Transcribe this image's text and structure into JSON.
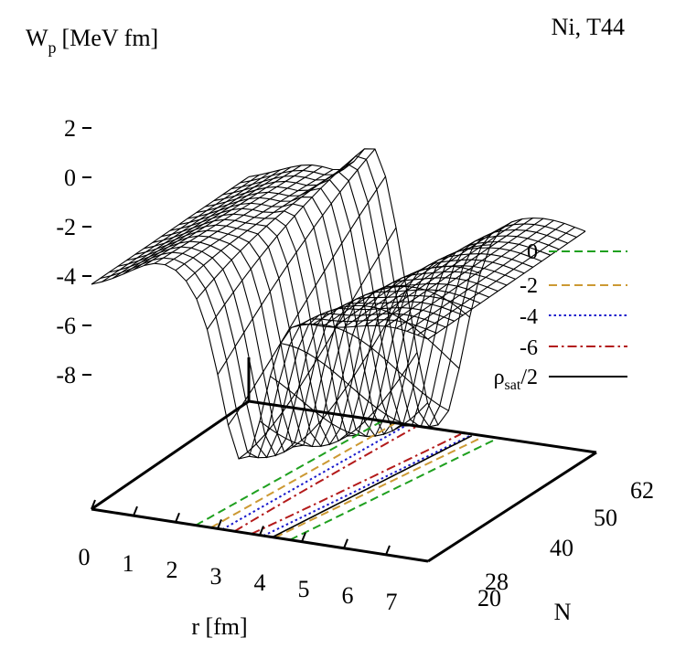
{
  "chart_data": {
    "type": "surface",
    "title": "Ni, T44",
    "zlabel": "W",
    "zlabel_subscript": "p",
    "zlabel_unit": "[MeV fm]",
    "xlabel": "r [fm]",
    "ylabel": "N",
    "z_ticks": [
      "2",
      "0",
      "-2",
      "-4",
      "-6",
      "-8"
    ],
    "x_ticks": [
      "0",
      "1",
      "2",
      "3",
      "4",
      "5",
      "6",
      "7"
    ],
    "y_ticks": [
      "20",
      "28",
      "40",
      "50",
      "62"
    ],
    "xlim": [
      0,
      8
    ],
    "ylim": [
      20,
      70
    ],
    "zlim": [
      -9,
      2
    ],
    "legend_position": "right",
    "legend": [
      {
        "label": "0",
        "color": "#1fa01f",
        "dash": "dashed"
      },
      {
        "label": "-2",
        "color": "#cc9933",
        "dash": "dashed"
      },
      {
        "label": "-4",
        "color": "#1a1acc",
        "dash": "dotted"
      },
      {
        "label": "-6",
        "color": "#b31a1a",
        "dash": "dashdot"
      },
      {
        "label": "ρ",
        "subscript": "sat",
        "suffix": "/2",
        "color": "#000000",
        "dash": "solid"
      }
    ]
  }
}
